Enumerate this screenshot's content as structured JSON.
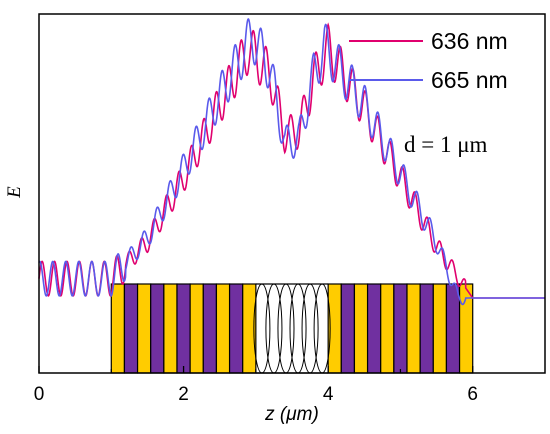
{
  "chart_data": {
    "type": "line",
    "title": "",
    "xlabel": "z (μm)",
    "ylabel": "E",
    "xlim": [
      0,
      7
    ],
    "xticks": [
      0,
      2,
      4,
      6
    ],
    "xtick_labels": [
      "0",
      "2",
      "4",
      "6"
    ],
    "yticks": [],
    "legend_position": "top-right",
    "annotation": "d = 1 μm",
    "series": [
      {
        "name": "636 nm",
        "color": "#e0006e",
        "envelope": [
          [
            0.0,
            0.45
          ],
          [
            1.0,
            0.45
          ],
          [
            1.5,
            1.3
          ],
          [
            2.0,
            2.8
          ],
          [
            2.5,
            4.5
          ],
          [
            2.9,
            5.8
          ],
          [
            3.2,
            5.2
          ],
          [
            3.4,
            3.8
          ],
          [
            3.6,
            3.9
          ],
          [
            3.8,
            5.1
          ],
          [
            4.0,
            5.8
          ],
          [
            4.5,
            4.4
          ],
          [
            5.0,
            2.8
          ],
          [
            5.5,
            1.2
          ],
          [
            6.0,
            0.0
          ],
          [
            7.0,
            0.0
          ]
        ]
      },
      {
        "name": "665 nm",
        "color": "#5a5aeb",
        "envelope": [
          [
            0.0,
            0.45
          ],
          [
            1.0,
            0.45
          ],
          [
            1.5,
            1.4
          ],
          [
            2.0,
            3.0
          ],
          [
            2.5,
            4.7
          ],
          [
            2.95,
            6.1
          ],
          [
            3.2,
            5.3
          ],
          [
            3.4,
            3.6
          ],
          [
            3.6,
            3.7
          ],
          [
            3.8,
            5.2
          ],
          [
            3.95,
            5.85
          ],
          [
            4.5,
            4.5
          ],
          [
            5.0,
            2.9
          ],
          [
            5.5,
            1.3
          ],
          [
            5.8,
            0.0
          ],
          [
            7.0,
            0.0
          ]
        ]
      }
    ],
    "structure": {
      "stack_left_range": [
        1.0,
        3.0
      ],
      "cavity_range": [
        3.0,
        4.0
      ],
      "stack_right_range": [
        4.0,
        6.0
      ],
      "layer_colors": [
        "#ffcc00",
        "#7030a0"
      ]
    }
  }
}
